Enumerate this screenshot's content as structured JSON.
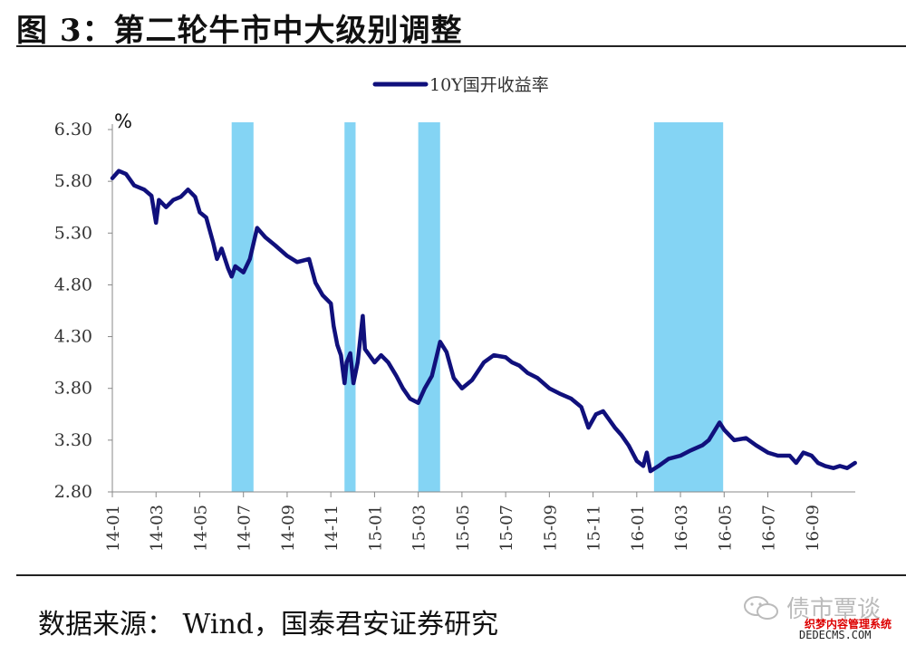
{
  "header": {
    "title": "图 3：第二轮牛市中大级别调整"
  },
  "footer": {
    "source": "数据来源：  Wind，国泰君安证券研究"
  },
  "watermark": {
    "name": "债市覃谈",
    "line1": "织梦内容管理系统",
    "line2": "DEDECMS.COM"
  },
  "colors": {
    "line": "#10107c",
    "shade": "#84d4f4",
    "axis": "#888888",
    "text": "#333333"
  },
  "chart_data": {
    "type": "line",
    "unit_label": "%",
    "ylim": [
      2.8,
      6.3
    ],
    "yticks": [
      "6.30",
      "5.80",
      "5.30",
      "4.80",
      "4.30",
      "3.80",
      "3.30",
      "2.80"
    ],
    "x_range": [
      "2014-01",
      "2016-11"
    ],
    "x_ticks": [
      "14-01",
      "14-03",
      "14-05",
      "14-07",
      "14-09",
      "14-11",
      "15-01",
      "15-03",
      "15-05",
      "15-07",
      "15-09",
      "15-11",
      "16-01",
      "16-03",
      "16-05",
      "16-07",
      "16-09"
    ],
    "legend": {
      "label": "10Y国开收益率",
      "position": "top-center"
    },
    "grid": false,
    "shaded_periods": [
      {
        "start": "2014-06-15",
        "end": "2014-07-15"
      },
      {
        "start": "2014-11-20",
        "end": "2014-12-05"
      },
      {
        "start": "2015-03-01",
        "end": "2015-04-01"
      },
      {
        "start": "2016-01-25",
        "end": "2016-04-30"
      }
    ],
    "series": [
      {
        "name": "10Y国开收益率",
        "points": [
          [
            "2014-01-01",
            5.83
          ],
          [
            "2014-01-10",
            5.9
          ],
          [
            "2014-01-20",
            5.87
          ],
          [
            "2014-02-01",
            5.76
          ],
          [
            "2014-02-15",
            5.72
          ],
          [
            "2014-02-25",
            5.66
          ],
          [
            "2014-03-01",
            5.4
          ],
          [
            "2014-03-05",
            5.62
          ],
          [
            "2014-03-15",
            5.55
          ],
          [
            "2014-03-25",
            5.62
          ],
          [
            "2014-04-05",
            5.65
          ],
          [
            "2014-04-15",
            5.72
          ],
          [
            "2014-04-25",
            5.65
          ],
          [
            "2014-05-01",
            5.5
          ],
          [
            "2014-05-10",
            5.45
          ],
          [
            "2014-05-20",
            5.2
          ],
          [
            "2014-05-25",
            5.05
          ],
          [
            "2014-06-01",
            5.15
          ],
          [
            "2014-06-10",
            4.96
          ],
          [
            "2014-06-15",
            4.88
          ],
          [
            "2014-06-20",
            4.98
          ],
          [
            "2014-07-01",
            4.92
          ],
          [
            "2014-07-10",
            5.05
          ],
          [
            "2014-07-20",
            5.35
          ],
          [
            "2014-08-01",
            5.26
          ],
          [
            "2014-08-15",
            5.18
          ],
          [
            "2014-09-01",
            5.08
          ],
          [
            "2014-09-15",
            5.02
          ],
          [
            "2014-10-01",
            5.05
          ],
          [
            "2014-10-10",
            4.82
          ],
          [
            "2014-10-20",
            4.7
          ],
          [
            "2014-11-01",
            4.62
          ],
          [
            "2014-11-05",
            4.4
          ],
          [
            "2014-11-10",
            4.22
          ],
          [
            "2014-11-15",
            4.12
          ],
          [
            "2014-11-20",
            3.85
          ],
          [
            "2014-11-23",
            4.05
          ],
          [
            "2014-11-28",
            4.14
          ],
          [
            "2014-12-02",
            3.85
          ],
          [
            "2014-12-08",
            4.05
          ],
          [
            "2014-12-15",
            4.5
          ],
          [
            "2014-12-18",
            4.18
          ],
          [
            "2015-01-01",
            4.05
          ],
          [
            "2015-01-10",
            4.12
          ],
          [
            "2015-01-20",
            4.05
          ],
          [
            "2015-02-01",
            3.92
          ],
          [
            "2015-02-10",
            3.8
          ],
          [
            "2015-02-20",
            3.7
          ],
          [
            "2015-03-01",
            3.66
          ],
          [
            "2015-03-10",
            3.8
          ],
          [
            "2015-03-20",
            3.92
          ],
          [
            "2015-04-01",
            4.25
          ],
          [
            "2015-04-10",
            4.15
          ],
          [
            "2015-04-20",
            3.9
          ],
          [
            "2015-05-01",
            3.8
          ],
          [
            "2015-05-15",
            3.88
          ],
          [
            "2015-06-01",
            4.05
          ],
          [
            "2015-06-15",
            4.12
          ],
          [
            "2015-07-01",
            4.1
          ],
          [
            "2015-07-10",
            4.05
          ],
          [
            "2015-07-20",
            4.02
          ],
          [
            "2015-08-01",
            3.95
          ],
          [
            "2015-08-15",
            3.9
          ],
          [
            "2015-09-01",
            3.8
          ],
          [
            "2015-09-15",
            3.75
          ],
          [
            "2015-10-01",
            3.7
          ],
          [
            "2015-10-15",
            3.62
          ],
          [
            "2015-10-25",
            3.42
          ],
          [
            "2015-11-05",
            3.55
          ],
          [
            "2015-11-15",
            3.58
          ],
          [
            "2015-12-01",
            3.42
          ],
          [
            "2015-12-10",
            3.35
          ],
          [
            "2015-12-20",
            3.25
          ],
          [
            "2016-01-01",
            3.1
          ],
          [
            "2016-01-10",
            3.05
          ],
          [
            "2016-01-15",
            3.18
          ],
          [
            "2016-01-20",
            3.0
          ],
          [
            "2016-02-01",
            3.05
          ],
          [
            "2016-02-15",
            3.12
          ],
          [
            "2016-03-01",
            3.15
          ],
          [
            "2016-03-15",
            3.2
          ],
          [
            "2016-04-01",
            3.25
          ],
          [
            "2016-04-10",
            3.3
          ],
          [
            "2016-04-25",
            3.47
          ],
          [
            "2016-05-01",
            3.4
          ],
          [
            "2016-05-15",
            3.3
          ],
          [
            "2016-06-01",
            3.32
          ],
          [
            "2016-06-15",
            3.25
          ],
          [
            "2016-07-01",
            3.18
          ],
          [
            "2016-07-15",
            3.15
          ],
          [
            "2016-08-01",
            3.15
          ],
          [
            "2016-08-10",
            3.08
          ],
          [
            "2016-08-20",
            3.18
          ],
          [
            "2016-09-01",
            3.15
          ],
          [
            "2016-09-10",
            3.08
          ],
          [
            "2016-09-20",
            3.05
          ],
          [
            "2016-10-01",
            3.03
          ],
          [
            "2016-10-10",
            3.05
          ],
          [
            "2016-10-20",
            3.03
          ],
          [
            "2016-10-31",
            3.08
          ]
        ]
      }
    ]
  }
}
